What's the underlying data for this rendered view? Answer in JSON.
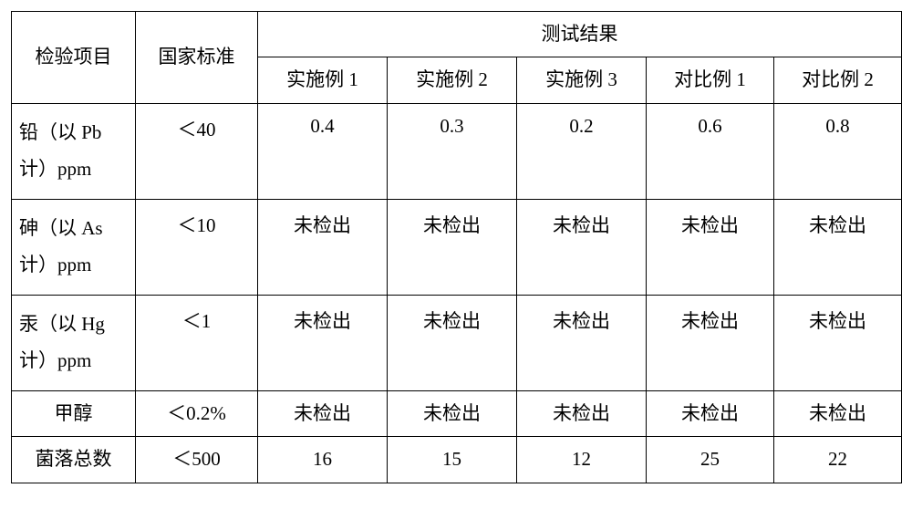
{
  "table": {
    "headers": {
      "item": "检验项目",
      "standard": "国家标准",
      "results": "测试结果",
      "sub": [
        "实施例 1",
        "实施例 2",
        "实施例 3",
        "对比例 1",
        "对比例 2"
      ]
    },
    "rows": [
      {
        "item_line1": "铅（以 Pb",
        "item_line2": "计）ppm",
        "standard": "＜40",
        "v": [
          "0.4",
          "0.3",
          "0.2",
          "0.6",
          "0.8"
        ]
      },
      {
        "item_line1": "砷（以 As",
        "item_line2": "计）ppm",
        "standard": "＜10",
        "v": [
          "未检出",
          "未检出",
          "未检出",
          "未检出",
          "未检出"
        ]
      },
      {
        "item_line1": "汞（以 Hg",
        "item_line2": "计）ppm",
        "standard": "＜1",
        "v": [
          "未检出",
          "未检出",
          "未检出",
          "未检出",
          "未检出"
        ]
      },
      {
        "item_single": "甲醇",
        "standard": "＜0.2%",
        "v": [
          "未检出",
          "未检出",
          "未检出",
          "未检出",
          "未检出"
        ]
      },
      {
        "item_single": "菌落总数",
        "standard": "＜500",
        "v": [
          "16",
          "15",
          "12",
          "25",
          "22"
        ]
      }
    ],
    "style": {
      "border_color": "#000000",
      "background": "#ffffff",
      "font_size_pt": 16,
      "font_family": "SimSun"
    }
  }
}
